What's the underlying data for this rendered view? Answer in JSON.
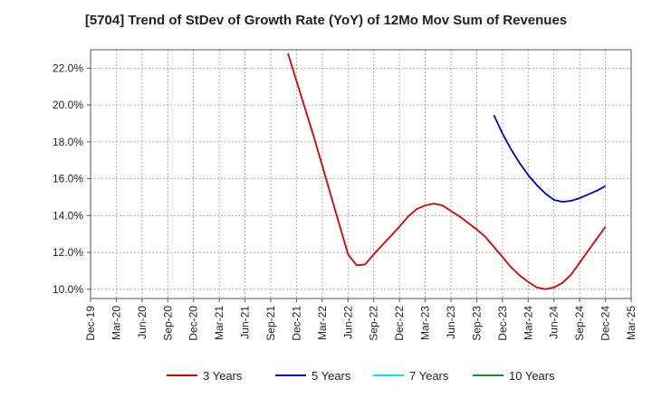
{
  "chart_data": {
    "type": "line",
    "title": "[5704]  Trend of StDev of Growth Rate (YoY) of 12Mo Mov Sum of Revenues",
    "xlabel": "",
    "ylabel": "",
    "ylim": [
      9.5,
      23.0
    ],
    "yticks": [
      10.0,
      12.0,
      14.0,
      16.0,
      18.0,
      20.0,
      22.0
    ],
    "ytick_labels": [
      "10.0%",
      "12.0%",
      "14.0%",
      "16.0%",
      "18.0%",
      "20.0%",
      "22.0%"
    ],
    "x_start": "Dec-19",
    "x_end": "Mar-25",
    "x_tick_labels": [
      "Dec-19",
      "Mar-20",
      "Jun-20",
      "Sep-20",
      "Dec-20",
      "Mar-21",
      "Jun-21",
      "Sep-21",
      "Dec-21",
      "Mar-22",
      "Jun-22",
      "Sep-22",
      "Dec-22",
      "Mar-23",
      "Jun-23",
      "Sep-23",
      "Dec-23",
      "Mar-24",
      "Jun-24",
      "Sep-24",
      "Dec-24",
      "Mar-25"
    ],
    "grid": true,
    "legend_position": "bottom",
    "series": [
      {
        "name": "3 Years",
        "color": "#dd0000",
        "x": [
          "Nov-21",
          "Dec-21",
          "Jan-22",
          "Feb-22",
          "Mar-22",
          "Apr-22",
          "May-22",
          "Jun-22",
          "Jul-22",
          "Aug-22",
          "Sep-22",
          "Oct-22",
          "Nov-22",
          "Dec-22",
          "Jan-23",
          "Feb-23",
          "Mar-23",
          "Apr-23",
          "May-23",
          "Jun-23",
          "Jul-23",
          "Aug-23",
          "Sep-23",
          "Oct-23",
          "Nov-23",
          "Dec-23",
          "Jan-24",
          "Feb-24",
          "Mar-24",
          "Apr-24",
          "May-24",
          "Jun-24",
          "Jul-24",
          "Aug-24",
          "Sep-24",
          "Oct-24",
          "Nov-24",
          "Dec-24"
        ],
        "values": [
          22.8,
          21.3,
          19.8,
          18.3,
          16.7,
          15.1,
          13.5,
          11.9,
          11.3,
          11.35,
          11.9,
          12.4,
          12.9,
          13.4,
          13.95,
          14.35,
          14.55,
          14.65,
          14.55,
          14.25,
          13.95,
          13.6,
          13.25,
          12.85,
          12.3,
          11.75,
          11.2,
          10.75,
          10.4,
          10.1,
          10.0,
          10.1,
          10.35,
          10.8,
          11.45,
          12.1,
          12.75,
          13.4
        ]
      },
      {
        "name": "5 Years",
        "color": "#0000cc",
        "x": [
          "Nov-23",
          "Dec-23",
          "Jan-24",
          "Feb-24",
          "Mar-24",
          "Apr-24",
          "May-24",
          "Jun-24",
          "Jul-24",
          "Aug-24",
          "Sep-24",
          "Oct-24",
          "Nov-24",
          "Dec-24"
        ],
        "values": [
          19.45,
          18.45,
          17.6,
          16.85,
          16.2,
          15.65,
          15.2,
          14.85,
          14.75,
          14.8,
          14.95,
          15.15,
          15.35,
          15.6
        ]
      },
      {
        "name": "7 Years",
        "color": "#00e5ee",
        "x": [],
        "values": []
      },
      {
        "name": "10 Years",
        "color": "#228b22",
        "x": [],
        "values": []
      }
    ]
  }
}
